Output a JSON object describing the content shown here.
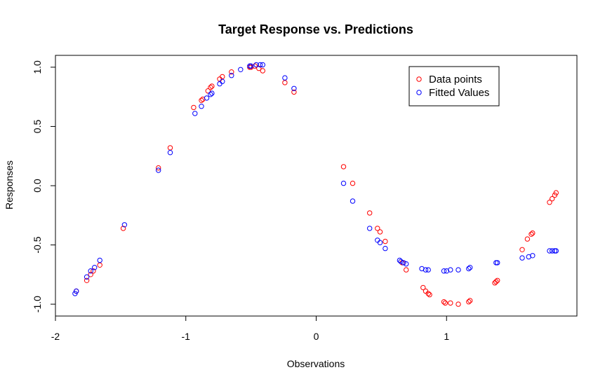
{
  "chart_data": {
    "type": "scatter",
    "title": "Target Response vs. Predictions",
    "xlabel": "Observations",
    "ylabel": "Responses",
    "xlim": [
      -2,
      2
    ],
    "ylim": [
      -1.1,
      1.1
    ],
    "x_ticks": [
      {
        "value": -2,
        "label": "-2"
      },
      {
        "value": -1,
        "label": "-1"
      },
      {
        "value": 0,
        "label": "0"
      },
      {
        "value": 1,
        "label": "1"
      }
    ],
    "y_ticks": [
      {
        "value": -1.0,
        "label": "-1.0"
      },
      {
        "value": -0.5,
        "label": "-0.5"
      },
      {
        "value": 0.0,
        "label": "0.0"
      },
      {
        "value": 0.5,
        "label": "0.5"
      },
      {
        "value": 1.0,
        "label": "1.0"
      }
    ],
    "legend": {
      "position": "top-right",
      "entries": [
        {
          "label": "Data points",
          "color": "#ff0000"
        },
        {
          "label": "Fitted Values",
          "color": "#0000ff"
        }
      ]
    },
    "series": [
      {
        "name": "Data points",
        "color": "#ff0000",
        "points": [
          [
            -1.84,
            -0.89
          ],
          [
            -1.76,
            -0.8
          ],
          [
            -1.73,
            -0.75
          ],
          [
            -1.71,
            -0.72
          ],
          [
            -1.66,
            -0.67
          ],
          [
            -1.48,
            -0.36
          ],
          [
            -1.21,
            0.15
          ],
          [
            -1.12,
            0.32
          ],
          [
            -0.94,
            0.66
          ],
          [
            -0.88,
            0.72
          ],
          [
            -0.87,
            0.73
          ],
          [
            -0.83,
            0.8
          ],
          [
            -0.81,
            0.83
          ],
          [
            -0.8,
            0.84
          ],
          [
            -0.74,
            0.9
          ],
          [
            -0.72,
            0.92
          ],
          [
            -0.65,
            0.96
          ],
          [
            -0.51,
            1.0
          ],
          [
            -0.5,
            1.0
          ],
          [
            -0.47,
            1.01
          ],
          [
            -0.44,
            0.99
          ],
          [
            -0.41,
            0.97
          ],
          [
            -0.24,
            0.87
          ],
          [
            -0.17,
            0.79
          ],
          [
            0.21,
            0.16
          ],
          [
            0.28,
            0.02
          ],
          [
            0.41,
            -0.23
          ],
          [
            0.47,
            -0.36
          ],
          [
            0.49,
            -0.39
          ],
          [
            0.53,
            -0.47
          ],
          [
            0.66,
            -0.65
          ],
          [
            0.69,
            -0.71
          ],
          [
            0.82,
            -0.86
          ],
          [
            0.84,
            -0.89
          ],
          [
            0.86,
            -0.91
          ],
          [
            0.87,
            -0.92
          ],
          [
            0.98,
            -0.98
          ],
          [
            0.99,
            -0.99
          ],
          [
            1.03,
            -0.99
          ],
          [
            1.09,
            -1.0
          ],
          [
            1.17,
            -0.98
          ],
          [
            1.18,
            -0.97
          ],
          [
            1.37,
            -0.82
          ],
          [
            1.38,
            -0.81
          ],
          [
            1.39,
            -0.8
          ],
          [
            1.58,
            -0.54
          ],
          [
            1.62,
            -0.45
          ],
          [
            1.65,
            -0.41
          ],
          [
            1.66,
            -0.4
          ],
          [
            1.79,
            -0.14
          ],
          [
            1.81,
            -0.11
          ],
          [
            1.83,
            -0.08
          ],
          [
            1.84,
            -0.06
          ]
        ]
      },
      {
        "name": "Fitted Values",
        "color": "#0000ff",
        "points": [
          [
            -1.85,
            -0.91
          ],
          [
            -1.84,
            -0.89
          ],
          [
            -1.76,
            -0.77
          ],
          [
            -1.73,
            -0.72
          ],
          [
            -1.7,
            -0.69
          ],
          [
            -1.66,
            -0.63
          ],
          [
            -1.47,
            -0.33
          ],
          [
            -1.21,
            0.13
          ],
          [
            -1.12,
            0.28
          ],
          [
            -0.93,
            0.61
          ],
          [
            -0.88,
            0.67
          ],
          [
            -0.84,
            0.74
          ],
          [
            -0.81,
            0.77
          ],
          [
            -0.8,
            0.78
          ],
          [
            -0.74,
            0.86
          ],
          [
            -0.72,
            0.88
          ],
          [
            -0.65,
            0.93
          ],
          [
            -0.58,
            0.98
          ],
          [
            -0.51,
            1.01
          ],
          [
            -0.5,
            1.01
          ],
          [
            -0.46,
            1.02
          ],
          [
            -0.43,
            1.02
          ],
          [
            -0.41,
            1.02
          ],
          [
            -0.24,
            0.91
          ],
          [
            -0.17,
            0.82
          ],
          [
            0.21,
            0.02
          ],
          [
            0.28,
            -0.13
          ],
          [
            0.41,
            -0.36
          ],
          [
            0.47,
            -0.46
          ],
          [
            0.49,
            -0.48
          ],
          [
            0.53,
            -0.53
          ],
          [
            0.64,
            -0.63
          ],
          [
            0.65,
            -0.64
          ],
          [
            0.67,
            -0.65
          ],
          [
            0.69,
            -0.66
          ],
          [
            0.81,
            -0.7
          ],
          [
            0.84,
            -0.71
          ],
          [
            0.86,
            -0.71
          ],
          [
            0.98,
            -0.72
          ],
          [
            1.0,
            -0.72
          ],
          [
            1.03,
            -0.71
          ],
          [
            1.09,
            -0.71
          ],
          [
            1.17,
            -0.7
          ],
          [
            1.18,
            -0.69
          ],
          [
            1.38,
            -0.65
          ],
          [
            1.39,
            -0.65
          ],
          [
            1.58,
            -0.61
          ],
          [
            1.63,
            -0.6
          ],
          [
            1.66,
            -0.59
          ],
          [
            1.79,
            -0.55
          ],
          [
            1.81,
            -0.55
          ],
          [
            1.83,
            -0.55
          ],
          [
            1.84,
            -0.55
          ]
        ]
      }
    ]
  }
}
